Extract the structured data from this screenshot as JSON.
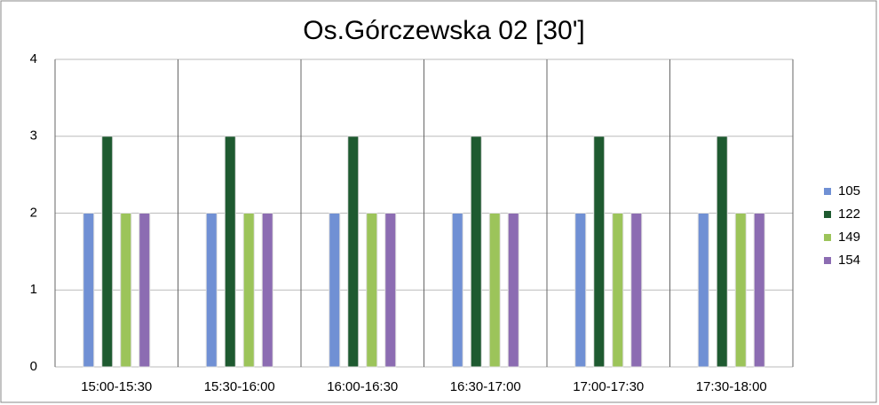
{
  "chart_data": {
    "type": "bar",
    "title": "Os.Górczewska 02 [30']",
    "categories": [
      "15:00-15:30",
      "15:30-16:00",
      "16:00-16:30",
      "16:30-17:00",
      "17:00-17:30",
      "17:30-18:00"
    ],
    "series": [
      {
        "name": "105",
        "color": "#7090d4",
        "values": [
          2,
          2,
          2,
          2,
          2,
          2
        ]
      },
      {
        "name": "122",
        "color": "#1e5a30",
        "values": [
          3,
          3,
          3,
          3,
          3,
          3
        ]
      },
      {
        "name": "149",
        "color": "#9cc45a",
        "values": [
          2,
          2,
          2,
          2,
          2,
          2
        ]
      },
      {
        "name": "154",
        "color": "#8c6cb2",
        "values": [
          2,
          2,
          2,
          2,
          2,
          2
        ]
      }
    ],
    "ylim": [
      0,
      4
    ],
    "yticks": [
      0,
      1,
      2,
      3,
      4
    ],
    "grid": true,
    "legend": "right"
  }
}
